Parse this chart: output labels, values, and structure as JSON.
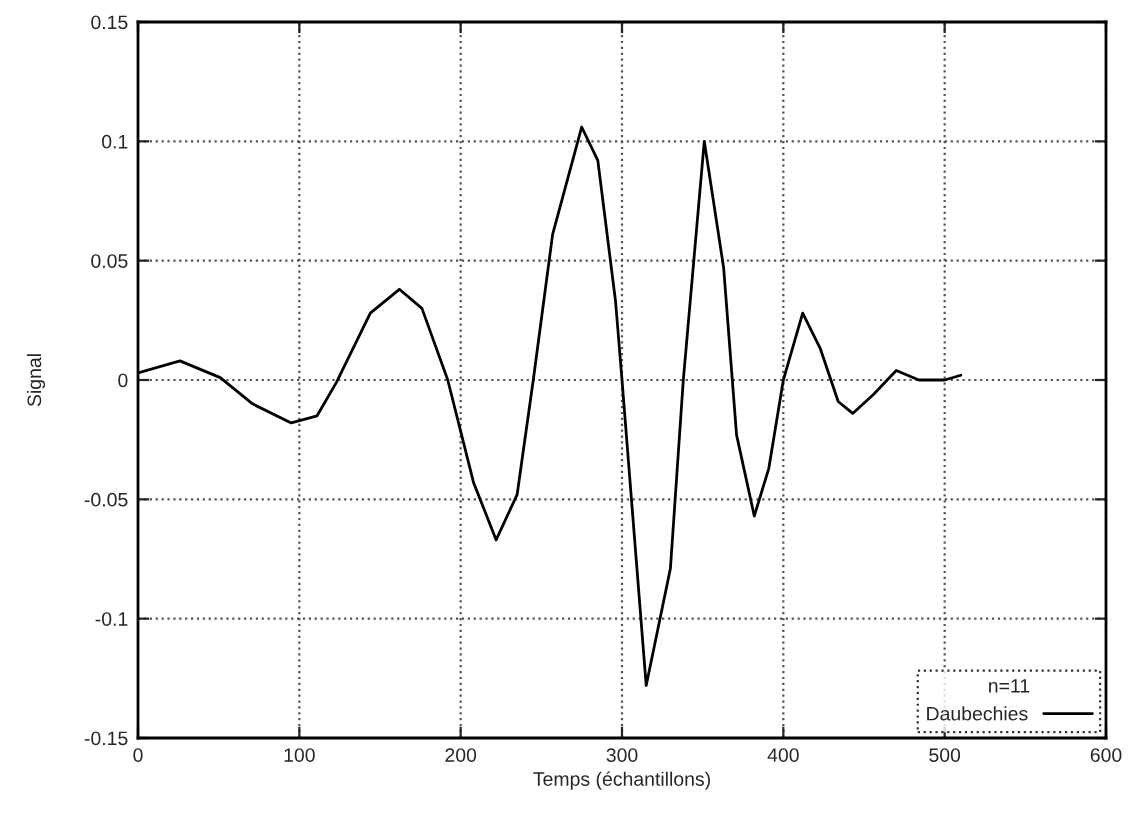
{
  "chart_data": {
    "type": "line",
    "xlabel": "Temps (échantillons)",
    "ylabel": "Signal",
    "xlim": [
      0,
      600
    ],
    "xticks": [
      0,
      100,
      200,
      300,
      400,
      500,
      600
    ],
    "ylim": [
      -0.15,
      0.15
    ],
    "yticks": [
      -0.15,
      -0.1,
      -0.05,
      0,
      0.05,
      0.1,
      0.15
    ],
    "grid": true,
    "legend": "bottom right",
    "legend_title": "n=11",
    "line_style": "solid",
    "marker": "none",
    "series": [
      {
        "name": "Daubechies",
        "color": "#000000",
        "x": [
          0,
          26,
          51,
          71,
          95,
          111,
          123,
          144,
          162,
          176,
          192,
          208,
          222,
          235,
          245,
          257,
          275,
          285,
          296,
          300,
          315,
          330,
          338,
          351,
          363,
          371,
          382,
          391,
          400,
          412,
          423,
          434,
          443,
          456,
          470,
          484,
          500,
          510
        ],
        "values": [
          0.003,
          0.008,
          0.001,
          -0.01,
          -0.018,
          -0.015,
          -0.001,
          0.028,
          0.038,
          0.03,
          0,
          -0.043,
          -0.067,
          -0.048,
          0,
          0.061,
          0.106,
          0.092,
          0.033,
          0,
          -0.128,
          -0.079,
          0,
          0.1,
          0.047,
          -0.023,
          -0.057,
          -0.037,
          0,
          0.028,
          0.013,
          -0.009,
          -0.014,
          -0.006,
          0.004,
          0,
          0,
          0.002
        ]
      }
    ]
  }
}
